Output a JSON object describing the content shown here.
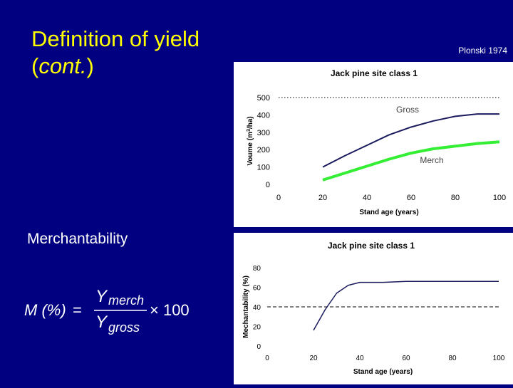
{
  "slide": {
    "title_line1": "Definition of yield",
    "title_line2_italic": "cont.",
    "citation": "Plonski 1974",
    "section_label": "Merchantability",
    "formula": {
      "lhs": "M (%)",
      "numerator": "Y",
      "numerator_sub": "merch",
      "denominator": "Y",
      "denominator_sub": "gross",
      "operator": "× 100"
    },
    "colors": {
      "background": "#000080",
      "title": "#ffff00",
      "text": "#ffffff",
      "gross_line": "#1a1a5e",
      "merch_line": "#33ee33",
      "merchantability_line": "#1a1a5e"
    }
  },
  "chart_data": [
    {
      "type": "line",
      "title": "Jack pine site class 1",
      "xlabel": "Stand age (years)",
      "ylabel": "Voume (m3/ha)",
      "xlim": [
        0,
        100
      ],
      "ylim": [
        0,
        500
      ],
      "xticks": [
        "0",
        "20",
        "40",
        "60",
        "80",
        "100"
      ],
      "yticks": [
        "0",
        "100",
        "200",
        "300",
        "400",
        "500"
      ],
      "reference_line": {
        "y": 500,
        "style": "dotted"
      },
      "series": [
        {
          "name": "Gross",
          "x": [
            20,
            30,
            40,
            50,
            60,
            70,
            80,
            90,
            100
          ],
          "values": [
            100,
            165,
            225,
            285,
            330,
            365,
            392,
            405,
            405
          ]
        },
        {
          "name": "Merch",
          "x": [
            20,
            30,
            40,
            50,
            60,
            70,
            80,
            90,
            100
          ],
          "values": [
            25,
            65,
            105,
            145,
            180,
            205,
            220,
            235,
            245
          ]
        }
      ]
    },
    {
      "type": "line",
      "title": "Jack pine site class 1",
      "xlabel": "Stand age (years)",
      "ylabel": "Mechantability (%)",
      "xlim": [
        0,
        100
      ],
      "ylim": [
        0,
        80
      ],
      "xticks": [
        "0",
        "20",
        "40",
        "60",
        "80",
        "100"
      ],
      "yticks": [
        "0",
        "20",
        "40",
        "60",
        "80"
      ],
      "reference_line": {
        "y": 40,
        "style": "dashed"
      },
      "series": [
        {
          "x": [
            20,
            25,
            30,
            35,
            40,
            50,
            60,
            70,
            80,
            90,
            100
          ],
          "values": [
            16,
            37,
            54,
            62,
            65,
            65,
            66,
            66,
            66,
            66,
            66
          ]
        }
      ]
    }
  ]
}
